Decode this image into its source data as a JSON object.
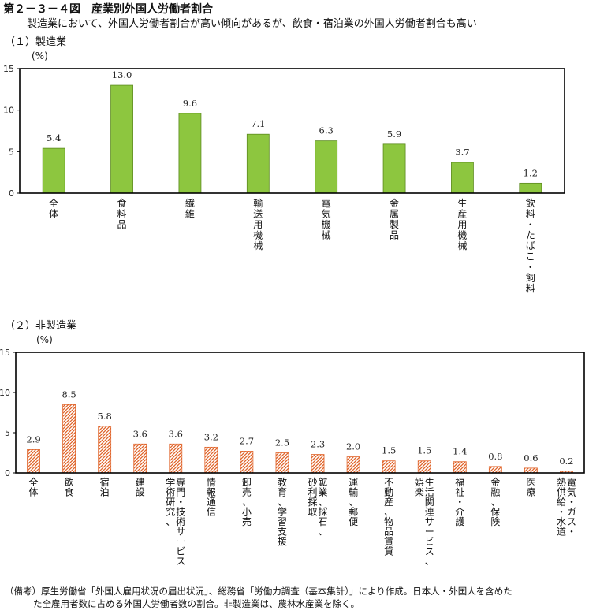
{
  "figure": {
    "title": "第２－３－４図　産業別外国人労働者割合",
    "subtitle": "製造業において、外国人労働者割合が高い傾向があるが、飲食・宿泊業の外国人労働者割合も高い",
    "notes": [
      "（備考）厚生労働省「外国人雇用状況の届出状況」、総務省「労働力調査（基本集計）」により作成。日本人・外国人を含めた",
      "た全雇用者数に占める外国人労働者数の割合。非製造業は、農林水産業を除く。"
    ]
  },
  "colors": {
    "green": "#8dc63f",
    "green_edge": "#5c8a1e",
    "hatch": "#e0642a",
    "axis": "#000000"
  },
  "chart_data": [
    {
      "type": "bar",
      "section_title": "（１）製造業",
      "unit": "(%)",
      "categories": [
        "全体",
        "食料品",
        "繊維",
        "輸送用機械",
        "電気機械",
        "金属製品",
        "生産用機械",
        "飲料・たばこ・飼料"
      ],
      "category_lines": [
        [
          "全体"
        ],
        [
          "食料品"
        ],
        [
          "繊維"
        ],
        [
          "輸送用機械"
        ],
        [
          "電気機械"
        ],
        [
          "金属製品"
        ],
        [
          "生産用機械"
        ],
        [
          "飲料・たばこ・飼料"
        ]
      ],
      "values": [
        5.4,
        13.0,
        9.6,
        7.1,
        6.3,
        5.9,
        3.7,
        1.2
      ],
      "value_labels": [
        "5.4",
        "13.0",
        "9.6",
        "7.1",
        "6.3",
        "5.9",
        "3.7",
        "1.2"
      ],
      "ylim": [
        0,
        15
      ],
      "yticks": [
        0,
        5,
        10,
        15
      ],
      "ytick_labels": [
        "0",
        "5",
        "10",
        "15"
      ],
      "style": "solid-green"
    },
    {
      "type": "bar",
      "section_title": "（２）非製造業",
      "unit": "(%)",
      "categories": [
        "全体",
        "飲食",
        "宿泊",
        "建設",
        "専門・技術サービス、学術研究、",
        "情報通信",
        "卸売、小売",
        "教育、学習支援",
        "鉱業、採石、砂利採取",
        "運輸、郵便",
        "不動産、物品賃貸",
        "生活関連サービス、娯楽",
        "福祉・介護",
        "金融、保険",
        "医療",
        "電気・ガス・熱供給・水道"
      ],
      "category_lines": [
        [
          "全体"
        ],
        [
          "飲食"
        ],
        [
          "宿泊"
        ],
        [
          "建設"
        ],
        [
          "専門・技術サービス",
          "学術研究、"
        ],
        [
          "情報通信"
        ],
        [
          "卸売、小売"
        ],
        [
          "教育、学習支援"
        ],
        [
          "鉱業、採石、",
          "砂利採取"
        ],
        [
          "運輸、郵便"
        ],
        [
          "不動産、物品賃貸"
        ],
        [
          "生活関連サービス、",
          "娯楽"
        ],
        [
          "福祉・介護"
        ],
        [
          "金融、保険"
        ],
        [
          "医療"
        ],
        [
          "電気・ガス・",
          "熱供給・水道"
        ]
      ],
      "values": [
        2.9,
        8.5,
        5.8,
        3.6,
        3.6,
        3.2,
        2.7,
        2.5,
        2.3,
        2.0,
        1.5,
        1.5,
        1.4,
        0.8,
        0.6,
        0.2
      ],
      "value_labels": [
        "2.9",
        "8.5",
        "5.8",
        "3.6",
        "3.6",
        "3.2",
        "2.7",
        "2.5",
        "2.3",
        "2.0",
        "1.5",
        "1.5",
        "1.4",
        "0.8",
        "0.6",
        "0.2"
      ],
      "ylim": [
        0,
        15
      ],
      "yticks": [
        0,
        5,
        10,
        15
      ],
      "ytick_labels": [
        "0",
        "5",
        "10",
        "15"
      ],
      "style": "hatched-orange"
    }
  ]
}
